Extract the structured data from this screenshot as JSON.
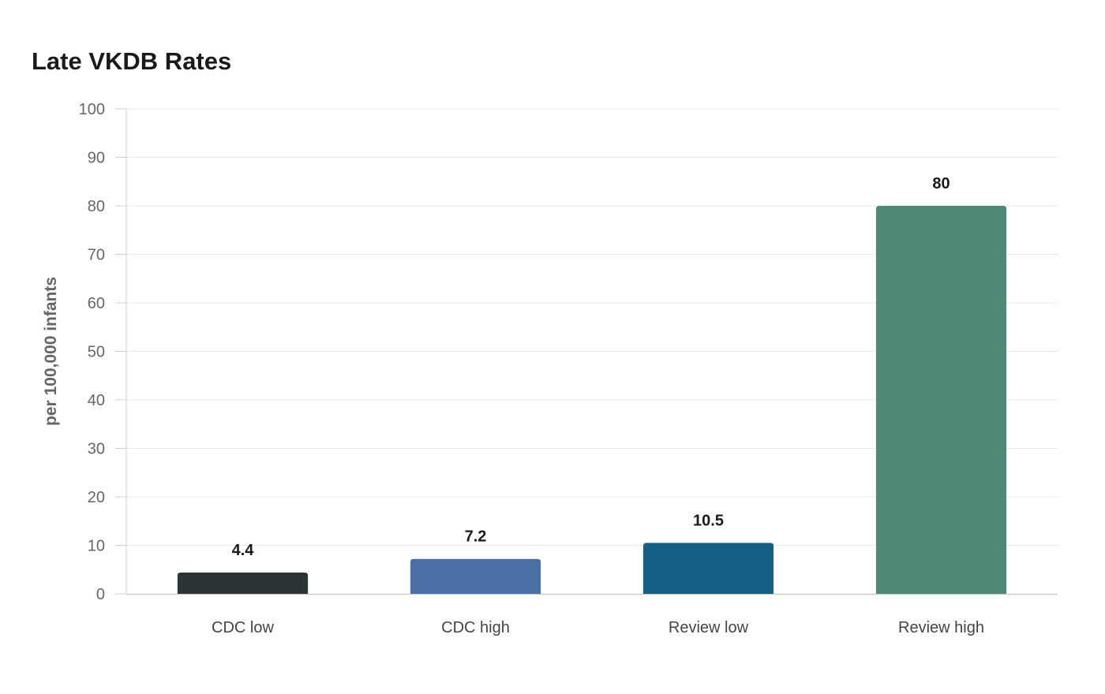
{
  "chart_data": {
    "type": "bar",
    "title": "Late VKDB Rates",
    "xlabel": "",
    "ylabel": "per 100,000 infants",
    "categories": [
      "CDC low",
      "CDC high",
      "Review low",
      "Review high"
    ],
    "values": [
      4.4,
      7.2,
      10.5,
      80
    ],
    "data_labels": [
      "4.4",
      "7.2",
      "10.5",
      "80"
    ],
    "colors": [
      "#2d3436",
      "#4a6fa5",
      "#166088",
      "#4f8a78"
    ],
    "ylim": [
      0,
      100
    ],
    "yticks": [
      0,
      10,
      20,
      30,
      40,
      50,
      60,
      70,
      80,
      90,
      100
    ],
    "grid": true,
    "legend": "none"
  }
}
